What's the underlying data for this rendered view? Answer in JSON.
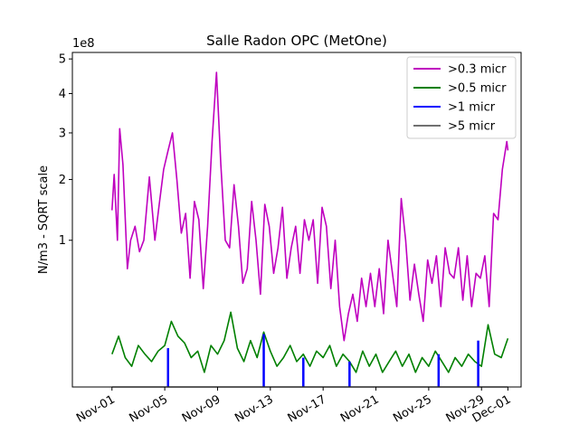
{
  "chart_data": {
    "type": "line",
    "title": "Salle Radon OPC (MetOne)",
    "xlabel": "",
    "ylabel": "N/m3 - SQRT scale",
    "y_scale": "sqrt",
    "y_offset_text": "1e8",
    "ylim": [
      0,
      5.2
    ],
    "y_ticks": [
      1,
      2,
      3,
      4,
      5
    ],
    "x_domain": [
      "2021-10-29",
      "2021-12-02"
    ],
    "x_ticks": [
      "Nov-01",
      "Nov-05",
      "Nov-09",
      "Nov-13",
      "Nov-17",
      "Nov-21",
      "Nov-25",
      "Nov-29",
      "Dec-01"
    ],
    "x_tick_dates": [
      "2021-11-01",
      "2021-11-05",
      "2021-11-09",
      "2021-11-13",
      "2021-11-17",
      "2021-11-21",
      "2021-11-25",
      "2021-11-29",
      "2021-12-01"
    ],
    "legend_position": "upper right",
    "series": [
      {
        "name": ">0.3 micr",
        "color": "#bf00bf",
        "x": [
          "2021-11-01 00:00",
          "2021-11-01 04:00",
          "2021-11-01 10:00",
          "2021-11-01 14:00",
          "2021-11-01 20:00",
          "2021-11-02 04:00",
          "2021-11-02 10:00",
          "2021-11-02 18:00",
          "2021-11-03 02:00",
          "2021-11-03 10:00",
          "2021-11-03 20:00",
          "2021-11-04 06:00",
          "2021-11-04 14:00",
          "2021-11-04 22:00",
          "2021-11-05 06:00",
          "2021-11-05 14:00",
          "2021-11-05 22:00",
          "2021-11-06 06:00",
          "2021-11-06 14:00",
          "2021-11-06 22:00",
          "2021-11-07 06:00",
          "2021-11-07 14:00",
          "2021-11-07 22:00",
          "2021-11-08 06:00",
          "2021-11-08 14:00",
          "2021-11-08 22:00",
          "2021-11-09 06:00",
          "2021-11-09 14:00",
          "2021-11-09 22:00",
          "2021-11-10 06:00",
          "2021-11-10 14:00",
          "2021-11-10 22:00",
          "2021-11-11 06:00",
          "2021-11-11 14:00",
          "2021-11-11 22:00",
          "2021-11-12 06:00",
          "2021-11-12 14:00",
          "2021-11-12 22:00",
          "2021-11-13 06:00",
          "2021-11-13 14:00",
          "2021-11-13 22:00",
          "2021-11-14 06:00",
          "2021-11-14 14:00",
          "2021-11-14 22:00",
          "2021-11-15 06:00",
          "2021-11-15 14:00",
          "2021-11-15 22:00",
          "2021-11-16 06:00",
          "2021-11-16 14:00",
          "2021-11-16 22:00",
          "2021-11-17 06:00",
          "2021-11-17 14:00",
          "2021-11-17 22:00",
          "2021-11-18 06:00",
          "2021-11-18 14:00",
          "2021-11-18 22:00",
          "2021-11-19 06:00",
          "2021-11-19 14:00",
          "2021-11-19 22:00",
          "2021-11-20 06:00",
          "2021-11-20 14:00",
          "2021-11-20 22:00",
          "2021-11-21 06:00",
          "2021-11-21 14:00",
          "2021-11-21 22:00",
          "2021-11-22 06:00",
          "2021-11-22 14:00",
          "2021-11-22 22:00",
          "2021-11-23 06:00",
          "2021-11-23 14:00",
          "2021-11-23 22:00",
          "2021-11-24 06:00",
          "2021-11-24 14:00",
          "2021-11-24 22:00",
          "2021-11-25 06:00",
          "2021-11-25 14:00",
          "2021-11-25 22:00",
          "2021-11-26 06:00",
          "2021-11-26 14:00",
          "2021-11-26 22:00",
          "2021-11-27 06:00",
          "2021-11-27 14:00",
          "2021-11-27 22:00",
          "2021-11-28 06:00",
          "2021-11-28 14:00",
          "2021-11-28 22:00",
          "2021-11-29 06:00",
          "2021-11-29 14:00",
          "2021-11-29 22:00",
          "2021-11-30 06:00",
          "2021-11-30 14:00",
          "2021-11-30 22:00",
          "2021-12-01 00:00"
        ],
        "values": [
          1.45,
          2.1,
          1.0,
          3.1,
          2.3,
          0.65,
          1.0,
          1.2,
          0.85,
          1.0,
          2.05,
          1.0,
          1.55,
          2.2,
          2.6,
          3.0,
          2.0,
          1.1,
          1.4,
          0.55,
          1.6,
          1.3,
          0.45,
          1.2,
          2.8,
          4.6,
          2.3,
          1.0,
          0.9,
          1.9,
          1.2,
          0.5,
          0.65,
          1.6,
          1.0,
          0.4,
          1.55,
          1.2,
          0.6,
          0.9,
          1.5,
          0.55,
          0.9,
          1.2,
          0.6,
          1.3,
          1.0,
          1.3,
          0.5,
          1.5,
          1.2,
          0.45,
          1.0,
          0.3,
          0.1,
          0.25,
          0.4,
          0.2,
          0.55,
          0.3,
          0.6,
          0.3,
          0.65,
          0.25,
          1.0,
          0.6,
          0.3,
          1.65,
          1.0,
          0.35,
          0.7,
          0.4,
          0.2,
          0.75,
          0.5,
          0.8,
          0.3,
          0.9,
          0.6,
          0.55,
          0.9,
          0.35,
          0.8,
          0.3,
          0.6,
          0.55,
          0.8,
          0.3,
          1.4,
          1.3,
          2.2,
          2.8,
          2.6
        ]
      },
      {
        "name": ">0.5 micr",
        "color": "#008000",
        "x": [
          "2021-11-01 00:00",
          "2021-11-01 12:00",
          "2021-11-02 00:00",
          "2021-11-02 12:00",
          "2021-11-03 00:00",
          "2021-11-03 12:00",
          "2021-11-04 00:00",
          "2021-11-04 12:00",
          "2021-11-05 00:00",
          "2021-11-05 12:00",
          "2021-11-06 00:00",
          "2021-11-06 12:00",
          "2021-11-07 00:00",
          "2021-11-07 12:00",
          "2021-11-08 00:00",
          "2021-11-08 12:00",
          "2021-11-09 00:00",
          "2021-11-09 12:00",
          "2021-11-10 00:00",
          "2021-11-10 12:00",
          "2021-11-11 00:00",
          "2021-11-11 12:00",
          "2021-11-12 00:00",
          "2021-11-12 12:00",
          "2021-11-13 00:00",
          "2021-11-13 12:00",
          "2021-11-14 00:00",
          "2021-11-14 12:00",
          "2021-11-15 00:00",
          "2021-11-15 12:00",
          "2021-11-16 00:00",
          "2021-11-16 12:00",
          "2021-11-17 00:00",
          "2021-11-17 12:00",
          "2021-11-18 00:00",
          "2021-11-18 12:00",
          "2021-11-19 00:00",
          "2021-11-19 12:00",
          "2021-11-20 00:00",
          "2021-11-20 12:00",
          "2021-11-21 00:00",
          "2021-11-21 12:00",
          "2021-11-22 00:00",
          "2021-11-22 12:00",
          "2021-11-23 00:00",
          "2021-11-23 12:00",
          "2021-11-24 00:00",
          "2021-11-24 12:00",
          "2021-11-25 00:00",
          "2021-11-25 12:00",
          "2021-11-26 00:00",
          "2021-11-26 12:00",
          "2021-11-27 00:00",
          "2021-11-27 12:00",
          "2021-11-28 00:00",
          "2021-11-28 12:00",
          "2021-11-29 00:00",
          "2021-11-29 12:00",
          "2021-11-30 00:00",
          "2021-11-30 12:00",
          "2021-12-01 00:00"
        ],
        "values": [
          0.05,
          0.12,
          0.04,
          0.02,
          0.08,
          0.05,
          0.03,
          0.06,
          0.08,
          0.2,
          0.12,
          0.09,
          0.04,
          0.06,
          0.01,
          0.08,
          0.05,
          0.1,
          0.26,
          0.07,
          0.03,
          0.1,
          0.04,
          0.14,
          0.06,
          0.02,
          0.04,
          0.08,
          0.03,
          0.05,
          0.02,
          0.06,
          0.04,
          0.08,
          0.02,
          0.05,
          0.03,
          0.01,
          0.06,
          0.02,
          0.05,
          0.01,
          0.03,
          0.06,
          0.02,
          0.05,
          0.01,
          0.04,
          0.02,
          0.06,
          0.03,
          0.01,
          0.04,
          0.02,
          0.05,
          0.03,
          0.02,
          0.18,
          0.05,
          0.04,
          0.11
        ]
      },
      {
        "name": ">1 micr",
        "color": "#0000ff",
        "x": [
          "2021-11-05 06:00",
          "2021-11-12 12:00",
          "2021-11-15 12:00",
          "2021-11-19 00:00",
          "2021-11-25 18:00",
          "2021-11-28 18:00"
        ],
        "values": [
          0.07,
          0.13,
          0.04,
          0.03,
          0.05,
          0.1
        ]
      },
      {
        "name": ">5 micr",
        "color": "#707070",
        "x": [
          "2021-11-01 00:00",
          "2021-12-01 00:00"
        ],
        "values": [
          0.0,
          0.0
        ]
      }
    ]
  }
}
